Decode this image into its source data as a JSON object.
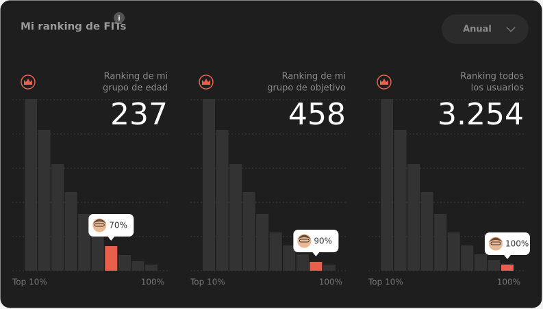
{
  "header": {
    "title": "Mi ranking de FITs",
    "info": "i",
    "period": "Anual"
  },
  "chart_data": [
    {
      "type": "bar",
      "title": [
        "Ranking de mi",
        "grupo de edad"
      ],
      "rank": "237",
      "values": [
        251,
        206,
        156,
        115,
        83,
        62,
        36,
        23,
        14,
        9
      ],
      "color": "#333333",
      "highlight": {
        "index": 6,
        "label": "70%",
        "color": "#e8604c"
      },
      "x_labels": [
        "Top 10%",
        "100%"
      ],
      "ylim": [
        0,
        260
      ],
      "yticks": [
        0,
        50,
        100,
        150,
        200,
        250
      ],
      "grid": true
    },
    {
      "type": "bar",
      "title": [
        "Ranking de mi",
        "grupo de objetivo"
      ],
      "rank": "458",
      "values": [
        251,
        206,
        156,
        115,
        83,
        56,
        37,
        24,
        13,
        9
      ],
      "color": "#333333",
      "highlight": {
        "index": 8,
        "label": "90%",
        "color": "#e8604c"
      },
      "x_labels": [
        "Top 10%",
        "100%"
      ],
      "ylim": [
        0,
        260
      ],
      "yticks": [
        0,
        50,
        100,
        150,
        200,
        250
      ],
      "grid": true
    },
    {
      "type": "bar",
      "title": [
        "Ranking todos",
        "los usuarios"
      ],
      "rank": "3.254",
      "values": [
        251,
        206,
        156,
        115,
        83,
        56,
        37,
        24,
        16,
        9
      ],
      "color": "#333333",
      "highlight": {
        "index": 9,
        "label": "100%",
        "color": "#e8604c"
      },
      "x_labels": [
        "Top 10%",
        "100%"
      ],
      "ylim": [
        0,
        260
      ],
      "yticks": [
        0,
        50,
        100,
        150,
        200,
        250
      ],
      "grid": true
    }
  ]
}
